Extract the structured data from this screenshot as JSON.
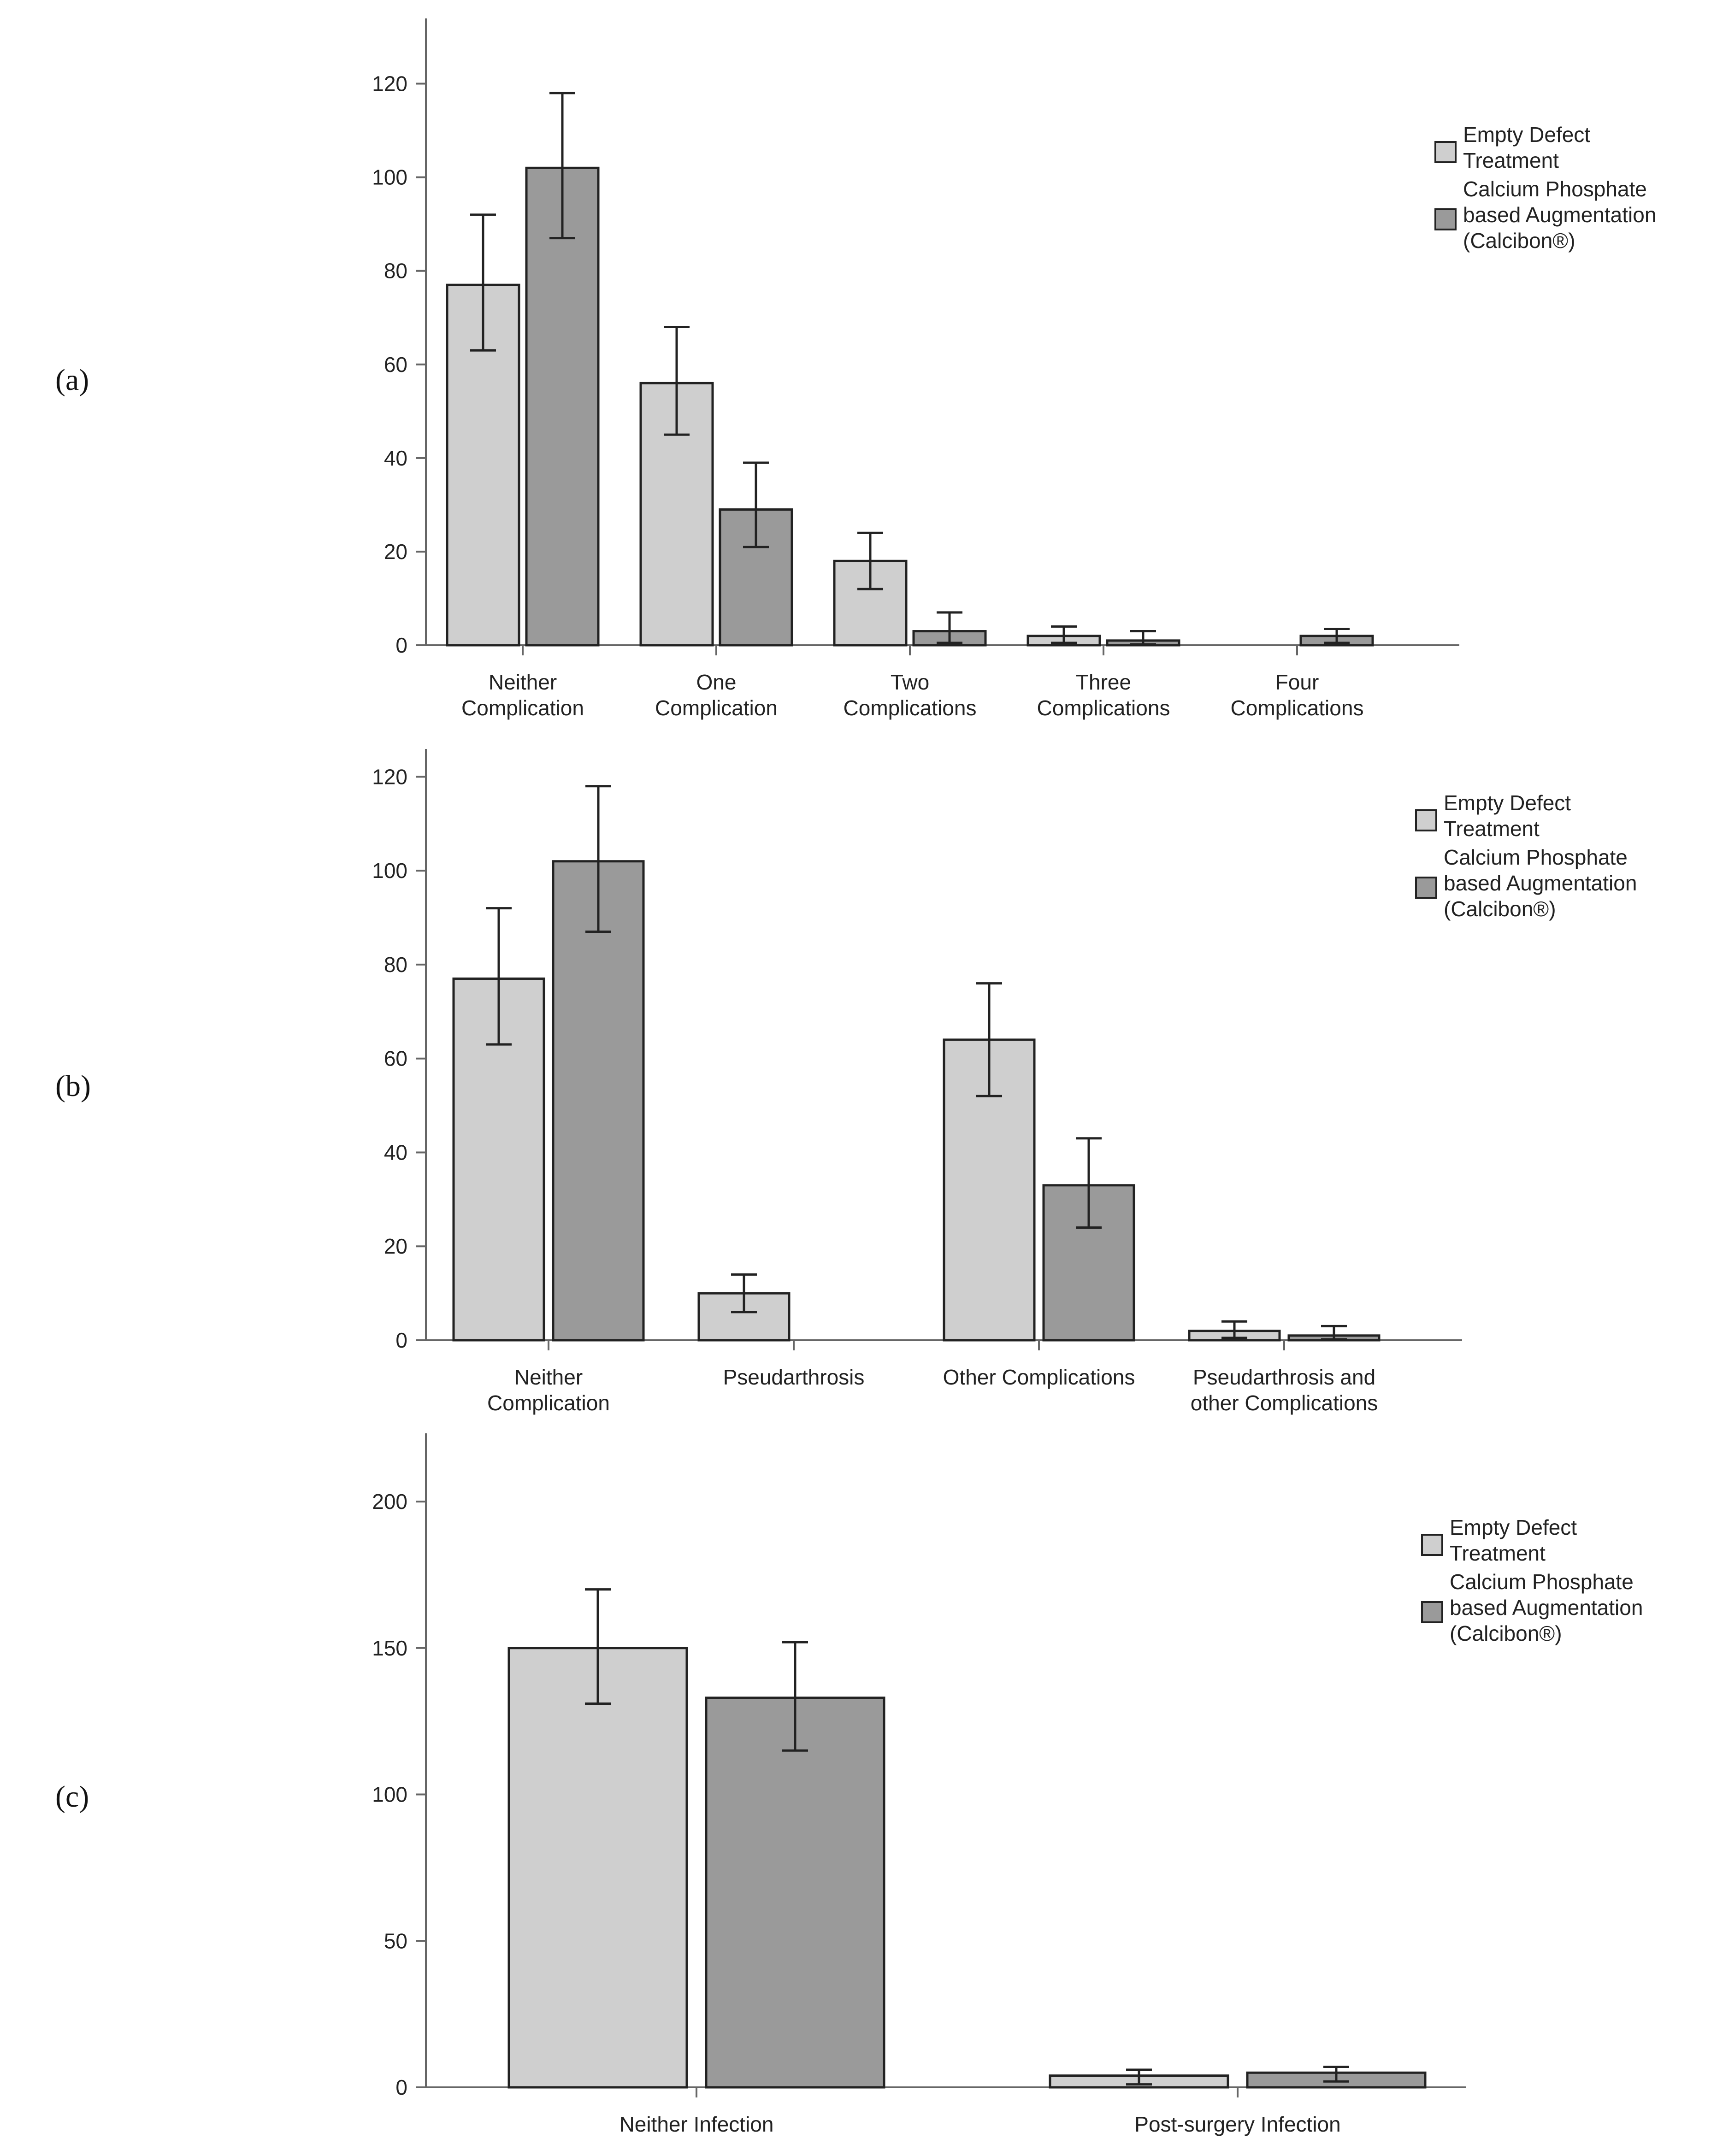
{
  "colors": {
    "series_light": "#cfcfcf",
    "series_dark": "#9a9a9a",
    "stroke": "#222222",
    "axis": "#666666"
  },
  "chart_data": [
    {
      "panel_label": "(a)",
      "type": "bar",
      "categories": [
        [
          "Neither",
          "Complication"
        ],
        [
          "One",
          "Complication"
        ],
        [
          "Two",
          "Complications"
        ],
        [
          "Three",
          "Complications"
        ],
        [
          "Four",
          "Complications"
        ]
      ],
      "yticks": [
        0,
        20,
        40,
        60,
        80,
        100,
        120
      ],
      "ylim": [
        0,
        130
      ],
      "series": [
        {
          "name": "Empty Defect Treatment",
          "legend_lines": [
            "Empty Defect",
            "Treatment"
          ],
          "color": "#cfcfcf",
          "values": [
            77,
            56,
            18,
            2,
            null
          ],
          "err_low": [
            63,
            45,
            12,
            0.5,
            null
          ],
          "err_high": [
            92,
            68,
            24,
            4,
            null
          ]
        },
        {
          "name": "Calcium Phosphate based Augmentation (Calcibon®)",
          "legend_lines": [
            "Calcium Phosphate",
            "based Augmentation",
            "(Calcibon®)"
          ],
          "color": "#9a9a9a",
          "values": [
            102,
            29,
            3,
            1,
            2
          ],
          "err_low": [
            87,
            21,
            0.5,
            0.2,
            0.5
          ],
          "err_high": [
            118,
            39,
            7,
            3,
            3.5
          ]
        }
      ]
    },
    {
      "panel_label": "(b)",
      "type": "bar",
      "categories": [
        [
          "Neither",
          "Complication"
        ],
        [
          "Pseudarthrosis"
        ],
        [
          "Other Complications"
        ],
        [
          "Pseudarthrosis and",
          "other Complications"
        ]
      ],
      "yticks": [
        0,
        20,
        40,
        60,
        80,
        100,
        120
      ],
      "ylim": [
        0,
        122
      ],
      "series": [
        {
          "name": "Empty Defect Treatment",
          "legend_lines": [
            "Empty Defect",
            "Treatment"
          ],
          "color": "#cfcfcf",
          "values": [
            77,
            10,
            64,
            2
          ],
          "err_low": [
            63,
            6,
            52,
            0.5
          ],
          "err_high": [
            92,
            14,
            76,
            4
          ]
        },
        {
          "name": "Calcium Phosphate based Augmentation (Calcibon®)",
          "legend_lines": [
            "Calcium Phosphate",
            "based Augmentation",
            "(Calcibon®)"
          ],
          "color": "#9a9a9a",
          "values": [
            102,
            null,
            33,
            1
          ],
          "err_low": [
            87,
            null,
            24,
            0.2
          ],
          "err_high": [
            118,
            null,
            43,
            3
          ]
        }
      ]
    },
    {
      "panel_label": "(c)",
      "type": "bar",
      "categories": [
        [
          "Neither Infection"
        ],
        [
          "Post-surgery Infection"
        ]
      ],
      "yticks": [
        0,
        50,
        100,
        150,
        200
      ],
      "ylim": [
        0,
        217
      ],
      "series": [
        {
          "name": "Empty Defect Treatment",
          "legend_lines": [
            "Empty Defect",
            "Treatment"
          ],
          "color": "#cfcfcf",
          "values": [
            150,
            4
          ],
          "err_low": [
            131,
            1
          ],
          "err_high": [
            170,
            6
          ]
        },
        {
          "name": "Calcium Phosphate based Augmentation (Calcibon®)",
          "legend_lines": [
            "Calcium Phosphate",
            "based Augmentation",
            "(Calcibon®)"
          ],
          "color": "#9a9a9a",
          "values": [
            133,
            5
          ],
          "err_low": [
            115,
            2
          ],
          "err_high": [
            152,
            7
          ]
        }
      ]
    }
  ]
}
